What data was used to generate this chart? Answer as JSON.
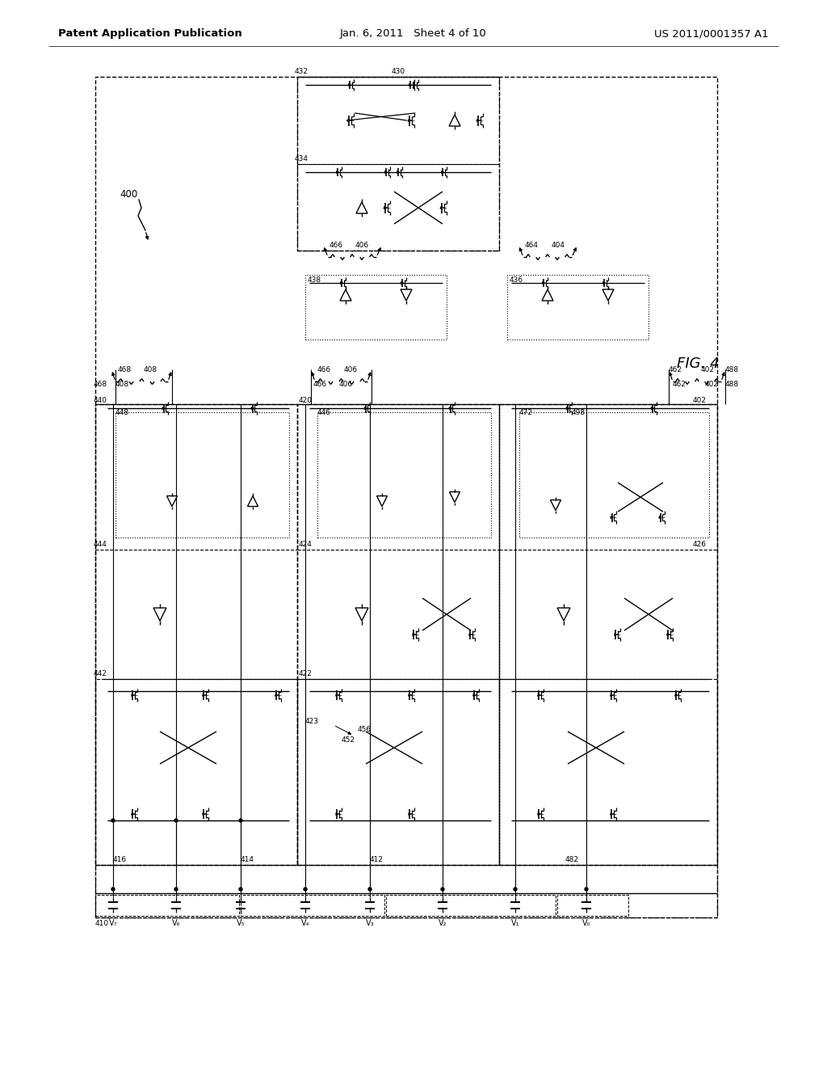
{
  "title_left": "Patent Application Publication",
  "title_center": "Jan. 6, 2011   Sheet 4 of 10",
  "title_right": "US 2011/0001357 A1",
  "fig_label": "FIG. 4",
  "label_400": "400",
  "bg": "#ffffff",
  "header_fs": 9.5,
  "label_fs": 7.5,
  "fig_fs": 13
}
